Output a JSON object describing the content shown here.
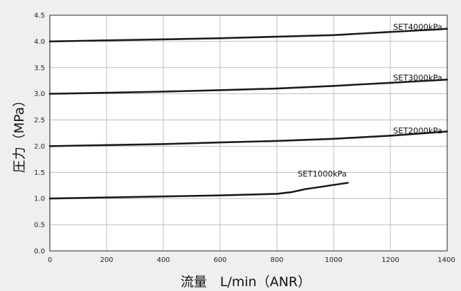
{
  "chart_data": {
    "type": "line",
    "xlabel": "流量　L/min（ANR）",
    "ylabel": "圧力（MPa）",
    "xlim": [
      0,
      1400
    ],
    "ylim": [
      0,
      4.5
    ],
    "grid": true,
    "x_ticks": [
      "0",
      "200",
      "400",
      "600",
      "800",
      "1000",
      "1200",
      "1400"
    ],
    "y_ticks": [
      "0.0",
      "0.5",
      "1.0",
      "1.5",
      "2.0",
      "2.5",
      "3.0",
      "3.5",
      "4.0",
      "4.5"
    ],
    "series": [
      {
        "name": "SET4000kPa",
        "x": [
          0,
          200,
          400,
          600,
          800,
          1000,
          1100,
          1200,
          1300,
          1400
        ],
        "y": [
          4.0,
          4.02,
          4.04,
          4.06,
          4.09,
          4.12,
          4.15,
          4.18,
          4.21,
          4.24
        ]
      },
      {
        "name": "SET3000kPa",
        "x": [
          0,
          200,
          400,
          600,
          800,
          1000,
          1100,
          1200,
          1300,
          1400
        ],
        "y": [
          3.0,
          3.02,
          3.04,
          3.07,
          3.1,
          3.15,
          3.18,
          3.21,
          3.24,
          3.27
        ]
      },
      {
        "name": "SET2000kPa",
        "x": [
          0,
          200,
          400,
          600,
          800,
          1000,
          1100,
          1200,
          1300,
          1400
        ],
        "y": [
          2.0,
          2.02,
          2.04,
          2.07,
          2.1,
          2.14,
          2.17,
          2.2,
          2.24,
          2.28
        ]
      },
      {
        "name": "SET1000kPa",
        "x": [
          0,
          200,
          400,
          600,
          800,
          850,
          900,
          950,
          1000,
          1050
        ],
        "y": [
          1.0,
          1.02,
          1.04,
          1.06,
          1.09,
          1.12,
          1.18,
          1.22,
          1.26,
          1.3
        ]
      }
    ]
  }
}
